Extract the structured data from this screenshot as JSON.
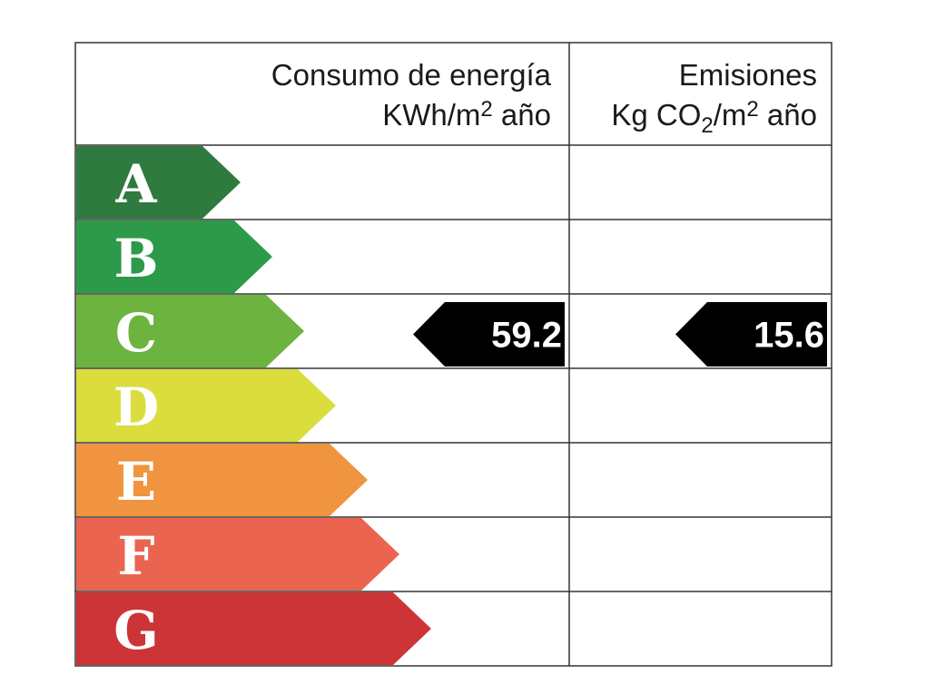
{
  "header": {
    "consumption": {
      "title": "Consumo de energía",
      "unit": [
        "KWh/m",
        "2",
        " año"
      ]
    },
    "emissions": {
      "title": "Emisiones",
      "unit": [
        "Kg CO",
        "2",
        "/m",
        "2",
        " año"
      ]
    }
  },
  "ratings": [
    {
      "letter": "A",
      "color": "#2f7a3e"
    },
    {
      "letter": "B",
      "color": "#2c9a48"
    },
    {
      "letter": "C",
      "color": "#6db33f"
    },
    {
      "letter": "D",
      "color": "#dadd3c"
    },
    {
      "letter": "E",
      "color": "#f0943f"
    },
    {
      "letter": "F",
      "color": "#ea6450"
    },
    {
      "letter": "G",
      "color": "#cd3437"
    }
  ],
  "consumption": {
    "rating": "C",
    "value": 59.2
  },
  "emissions": {
    "rating": "C",
    "value": 15.6
  }
}
